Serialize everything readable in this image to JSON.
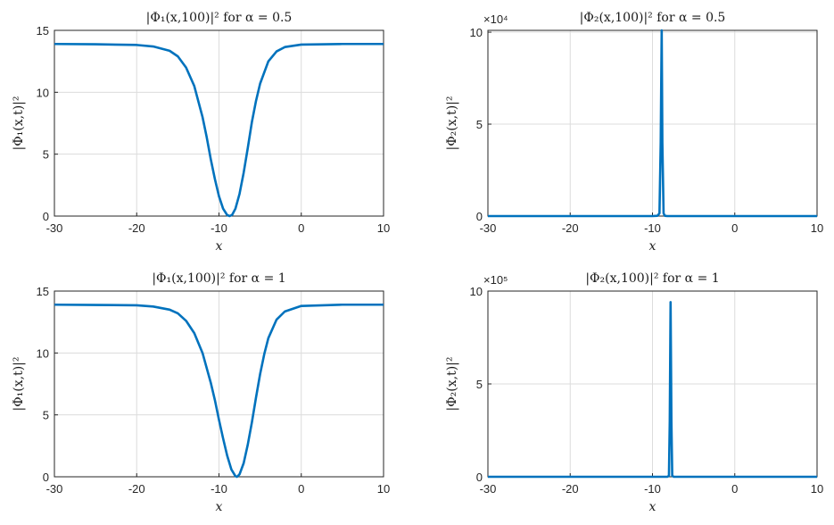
{
  "chart_data": [
    {
      "type": "line",
      "title": "|Φ₁(x,100)|² for α = 0.5",
      "xlabel": "x",
      "ylabel": "|Φ₁(x,t)|²",
      "xlim": [
        -30,
        10
      ],
      "ylim": [
        0,
        15
      ],
      "x_ticks": [
        -30,
        -20,
        -10,
        0,
        10
      ],
      "y_ticks": [
        0,
        5,
        10,
        15
      ],
      "exponent_label": "",
      "grid": true,
      "color": "#0072bd",
      "series": [
        {
          "x": [
            -30,
            -25,
            -20,
            -18,
            -16,
            -15,
            -14,
            -13,
            -12,
            -11.5,
            -11,
            -10.5,
            -10,
            -9.5,
            -9,
            -8.7,
            -8.4,
            -8,
            -7.5,
            -7,
            -6.5,
            -6,
            -5.5,
            -5,
            -4,
            -3,
            -2,
            0,
            5,
            10
          ],
          "values": [
            13.9,
            13.88,
            13.82,
            13.7,
            13.35,
            12.9,
            12.0,
            10.5,
            8.0,
            6.4,
            4.6,
            3.0,
            1.6,
            0.6,
            0.08,
            0.0,
            0.1,
            0.6,
            1.8,
            3.5,
            5.5,
            7.6,
            9.3,
            10.7,
            12.5,
            13.3,
            13.65,
            13.85,
            13.9,
            13.9
          ]
        }
      ]
    },
    {
      "type": "line",
      "title": "|Φ₂(x,100)|² for α = 0.5",
      "xlabel": "x",
      "ylabel": "|Φ₂(x,t)|²",
      "xlim": [
        -30,
        10
      ],
      "ylim": [
        0,
        101000
      ],
      "x_ticks": [
        -30,
        -20,
        -10,
        0,
        10
      ],
      "y_ticks": [
        0,
        5,
        10
      ],
      "exponent_label": "×10⁴",
      "grid": true,
      "color": "#0072bd",
      "series": [
        {
          "x": [
            -30,
            -10,
            -9.4,
            -9.15,
            -9.0,
            -8.88,
            -8.8,
            -8.65,
            -8.5,
            -8.2,
            -7.5,
            0,
            10
          ],
          "values": [
            0,
            0,
            150,
            1500,
            40000,
            101000,
            40000,
            1500,
            150,
            0,
            0,
            0,
            0
          ]
        }
      ]
    },
    {
      "type": "line",
      "title": "|Φ₁(x,100)|² for α = 1",
      "xlabel": "x",
      "ylabel": "|Φ₁(x,t)|²",
      "xlim": [
        -30,
        10
      ],
      "ylim": [
        0,
        15
      ],
      "x_ticks": [
        -30,
        -20,
        -10,
        0,
        10
      ],
      "y_ticks": [
        0,
        5,
        10,
        15
      ],
      "exponent_label": "",
      "grid": true,
      "color": "#0072bd",
      "series": [
        {
          "x": [
            -30,
            -25,
            -20,
            -18,
            -16,
            -15,
            -14,
            -13,
            -12,
            -11,
            -10.5,
            -10,
            -9.5,
            -9,
            -8.5,
            -8,
            -7.8,
            -7.5,
            -7,
            -6.5,
            -6,
            -5.5,
            -5,
            -4.5,
            -4,
            -3,
            -2,
            0,
            5,
            10
          ],
          "values": [
            13.9,
            13.88,
            13.85,
            13.75,
            13.5,
            13.2,
            12.6,
            11.6,
            10.0,
            7.6,
            6.2,
            4.6,
            3.1,
            1.7,
            0.6,
            0.05,
            0.0,
            0.2,
            1.1,
            2.6,
            4.4,
            6.4,
            8.3,
            9.9,
            11.2,
            12.7,
            13.35,
            13.8,
            13.9,
            13.9
          ]
        }
      ]
    },
    {
      "type": "line",
      "title": "|Φ₂(x,100)|² for α = 1",
      "xlabel": "x",
      "ylabel": "|Φ₂(x,t)|²",
      "xlim": [
        -30,
        10
      ],
      "ylim": [
        0,
        1000000
      ],
      "x_ticks": [
        -30,
        -20,
        -10,
        0,
        10
      ],
      "y_ticks": [
        0,
        5,
        10
      ],
      "exponent_label": "×10⁵",
      "grid": true,
      "color": "#0072bd",
      "series": [
        {
          "x": [
            -30,
            -9,
            -8.2,
            -8.0,
            -7.9,
            -7.8,
            -7.7,
            -7.6,
            -7.4,
            -6.8,
            0,
            10
          ],
          "values": [
            0,
            0,
            200,
            5000,
            300000,
            940000,
            300000,
            5000,
            200,
            0,
            0,
            0
          ]
        }
      ]
    }
  ]
}
